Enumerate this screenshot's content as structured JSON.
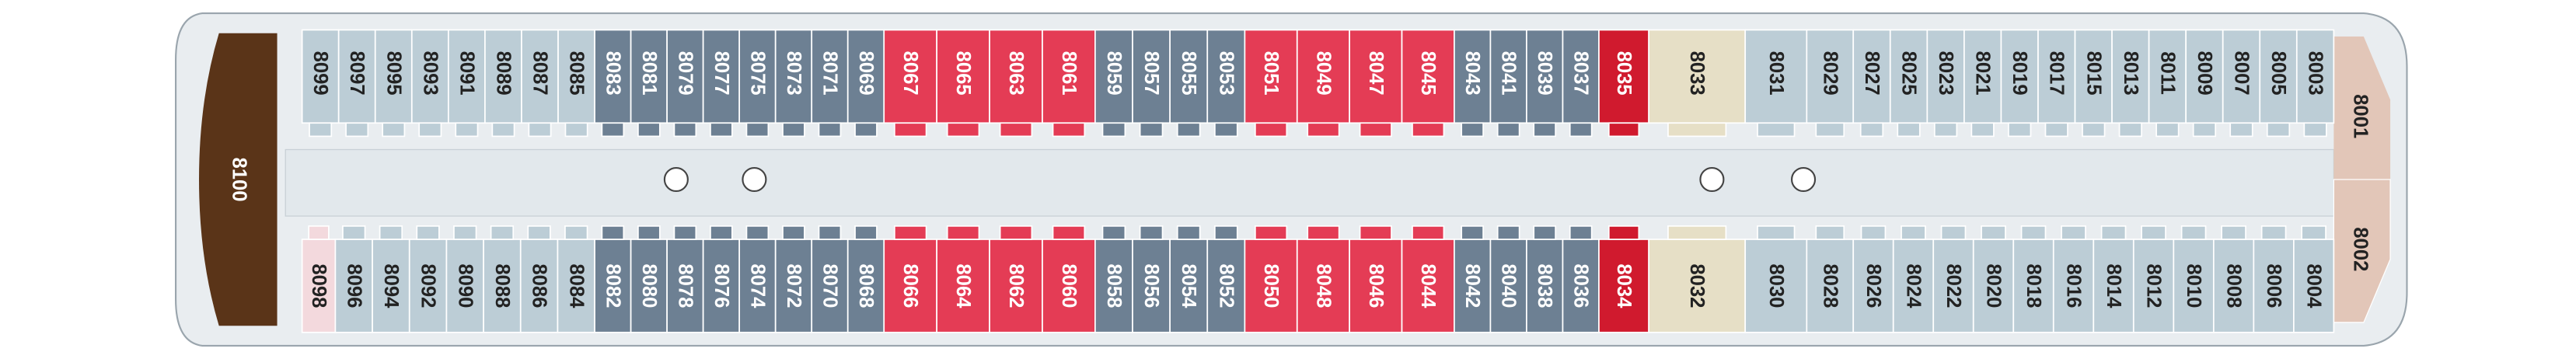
{
  "deck": {
    "aft_suite": "8100",
    "top_row": [
      "8099",
      "8097",
      "8095",
      "8093",
      "8091",
      "8089",
      "8087",
      "8085",
      "8083",
      "8081",
      "8079",
      "8077",
      "8075",
      "8073",
      "8071",
      "8069",
      "8067",
      "8065",
      "8063",
      "8061",
      "8059",
      "8057",
      "8055",
      "8053",
      "8051",
      "8049",
      "8047",
      "8045",
      "8043",
      "8041",
      "8039",
      "8037",
      "8035",
      "8033",
      "8031",
      "8029",
      "8027",
      "8025",
      "8023",
      "8021",
      "8019",
      "8017",
      "8015",
      "8013",
      "8011",
      "8009",
      "8007",
      "8005",
      "8003"
    ],
    "bottom_row": [
      "8098",
      "8096",
      "8094",
      "8092",
      "8090",
      "8088",
      "8086",
      "8084",
      "8082",
      "8080",
      "8078",
      "8076",
      "8074",
      "8072",
      "8070",
      "8068",
      "8066",
      "8064",
      "8062",
      "8060",
      "8058",
      "8056",
      "8054",
      "8052",
      "8050",
      "8048",
      "8046",
      "8044",
      "8042",
      "8040",
      "8038",
      "8036",
      "8034",
      "8032",
      "8030",
      "8028",
      "8026",
      "8024",
      "8022",
      "8020",
      "8018",
      "8016",
      "8014",
      "8012",
      "8010",
      "8008",
      "8006",
      "8004"
    ],
    "forward_suites": [
      "8001",
      "8002"
    ]
  }
}
